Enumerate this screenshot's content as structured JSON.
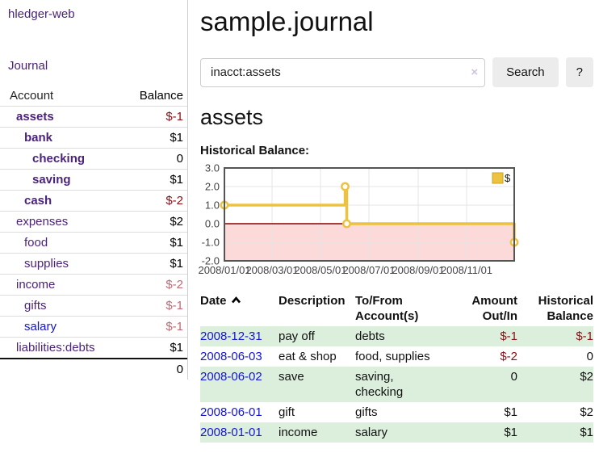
{
  "app": {
    "brand": "hledger-web"
  },
  "sidebar": {
    "journal_label": "Journal",
    "accounts_table": {
      "headers": {
        "account": "Account",
        "balance": "Balance"
      },
      "rows": [
        {
          "name": "assets",
          "balance": "$-1"
        },
        {
          "name": "bank",
          "balance": "$1"
        },
        {
          "name": "checking",
          "balance": "0"
        },
        {
          "name": "saving",
          "balance": "$1"
        },
        {
          "name": "cash",
          "balance": "$-2"
        },
        {
          "name": "expenses",
          "balance": "$2"
        },
        {
          "name": "food",
          "balance": "$1"
        },
        {
          "name": "supplies",
          "balance": "$1"
        },
        {
          "name": "income",
          "balance": "$-2"
        },
        {
          "name": "gifts",
          "balance": "$-1"
        },
        {
          "name": "salary",
          "balance": "$-1"
        },
        {
          "name": "liabilities:debts",
          "balance": "$1"
        }
      ],
      "total": "0"
    }
  },
  "header": {
    "title": "sample.journal"
  },
  "search": {
    "value": "inacct:assets",
    "clear_icon": "×",
    "button_label": "Search",
    "help_label": "?"
  },
  "account_page": {
    "title": "assets",
    "chart_label": "Historical Balance:"
  },
  "chart_data": {
    "type": "line",
    "style": "step",
    "title": "Historical Balance",
    "series": [
      {
        "name": "$",
        "color": "#edc240",
        "points": [
          [
            "2008-01-01",
            1
          ],
          [
            "2008-06-01",
            2
          ],
          [
            "2008-06-03",
            0
          ],
          [
            "2008-12-31",
            -1
          ]
        ]
      }
    ],
    "x_ticks": [
      "2008/01/01",
      "2008/03/01",
      "2008/05/01",
      "2008/07/01",
      "2008/09/01",
      "2008/11/01"
    ],
    "y_ticks": [
      3.0,
      2.0,
      1.0,
      0.0,
      -1.0,
      -2.0
    ],
    "xlim": [
      "2008-01-01",
      "2008-12-31"
    ],
    "ylim": [
      -2.0,
      3.0
    ],
    "legend": {
      "label": "$",
      "position": "top-right"
    },
    "grid": true,
    "negative_region_color": "#fcdada",
    "zero_line_color": "#8b0000",
    "grid_color": "#e4e4e4",
    "border_color": "#545454",
    "tick_color": "#444444"
  },
  "register": {
    "headers": {
      "date": "Date",
      "description": "Description",
      "accounts": "To/From\nAccount(s)",
      "amount": "Amount\nOut/In",
      "balance": "Historical\nBalance"
    },
    "rows": [
      {
        "date": "2008-12-31",
        "description": "pay off",
        "accounts": "debts",
        "amount": "$-1",
        "balance": "$-1"
      },
      {
        "date": "2008-06-03",
        "description": "eat & shop",
        "accounts": "food, supplies",
        "amount": "$-2",
        "balance": "0"
      },
      {
        "date": "2008-06-02",
        "description": "save",
        "accounts": "saving,\nchecking",
        "amount": "0",
        "balance": "$2"
      },
      {
        "date": "2008-06-01",
        "description": "gift",
        "accounts": "gifts",
        "amount": "$1",
        "balance": "$2"
      },
      {
        "date": "2008-01-01",
        "description": "income",
        "accounts": "salary",
        "amount": "$1",
        "balance": "$1"
      }
    ]
  },
  "colors": {
    "visited_link_purple": "#4b237d",
    "link_blue": "#1414d6",
    "negative_red": "#8b0e14",
    "negative_weak_red": "#bd6a72",
    "row_stripe_green": "#dcefdc",
    "button_gray": "#ececec",
    "chart_line_gold": "#edc240"
  }
}
